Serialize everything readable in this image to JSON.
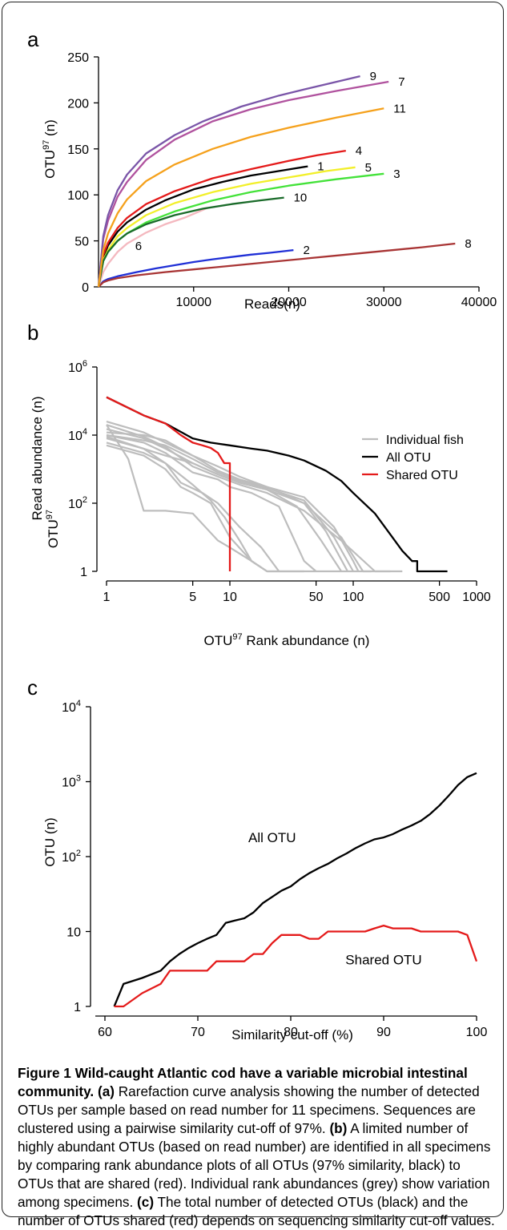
{
  "chart_data": [
    {
      "type": "line",
      "panel_label": "a",
      "xlabel": "Reads(n)",
      "ylabel_main": "OTU",
      "ylabel_sup": "97",
      "ylabel_tail": " (n)",
      "xlim": [
        0,
        40000
      ],
      "ylim": [
        0,
        250
      ],
      "xticks": [
        "10000",
        "20000",
        "30000",
        "40000"
      ],
      "yticks": [
        "0",
        "50",
        "100",
        "150",
        "200",
        "250"
      ],
      "series": [
        {
          "name": "1",
          "color": "#000000",
          "x": [
            0,
            500,
            1000,
            2000,
            3000,
            5000,
            7000,
            10000,
            13000,
            16000,
            19000,
            22000
          ],
          "y": [
            0,
            32,
            45,
            60,
            70,
            84,
            94,
            106,
            114,
            121,
            126,
            131
          ]
        },
        {
          "name": "2",
          "color": "#1f2fd6",
          "x": [
            0,
            500,
            1000,
            2000,
            4000,
            6000,
            8000,
            10000,
            12000,
            14000,
            16000,
            18000,
            20500
          ],
          "y": [
            0,
            6,
            8.5,
            11.5,
            16,
            20,
            23.5,
            27,
            30,
            32.5,
            35,
            37,
            40
          ]
        },
        {
          "name": "3",
          "color": "#44e23a",
          "x": [
            0,
            500,
            1000,
            2000,
            3000,
            5000,
            8000,
            12000,
            16000,
            20000,
            25000,
            30000
          ],
          "y": [
            0,
            28,
            38,
            50,
            58,
            70,
            82,
            94,
            103,
            110,
            117,
            123
          ]
        },
        {
          "name": "4",
          "color": "#e41a1a",
          "x": [
            0,
            500,
            1000,
            2000,
            3000,
            5000,
            8000,
            12000,
            16000,
            20000,
            23000,
            26000
          ],
          "y": [
            0,
            35,
            48,
            64,
            75,
            90,
            104,
            118,
            128,
            137,
            143,
            148
          ]
        },
        {
          "name": "5",
          "color": "#f2ef2a",
          "x": [
            0,
            500,
            1000,
            2000,
            3000,
            5000,
            8000,
            12000,
            16000,
            20000,
            24000,
            27000
          ],
          "y": [
            0,
            29,
            40,
            55,
            64,
            78,
            91,
            103,
            112,
            119,
            126,
            130
          ]
        },
        {
          "name": "6",
          "color": "#f4b8bf",
          "x": [
            0,
            500,
            1000,
            2000,
            3000,
            5000,
            7000,
            9000,
            11500
          ],
          "y": [
            0,
            16,
            25,
            38,
            47,
            59,
            68,
            75,
            86
          ]
        },
        {
          "name": "7",
          "color": "#b0529e",
          "x": [
            0,
            500,
            1000,
            2000,
            3000,
            5000,
            8000,
            12000,
            16000,
            20000,
            25000,
            30500
          ],
          "y": [
            0,
            52,
            72,
            98,
            114,
            138,
            160,
            180,
            193,
            203,
            213,
            223
          ]
        },
        {
          "name": "8",
          "color": "#a83434",
          "x": [
            0,
            500,
            1000,
            2000,
            4000,
            7000,
            10000,
            14000,
            18000,
            22000,
            26000,
            30000,
            34000,
            37500
          ],
          "y": [
            0,
            5,
            7,
            9.5,
            12.5,
            16,
            19,
            23,
            27,
            31,
            35,
            39,
            43,
            47
          ]
        },
        {
          "name": "9",
          "color": "#7a55a8",
          "x": [
            0,
            500,
            1000,
            2000,
            3000,
            5000,
            8000,
            11000,
            15000,
            19000,
            23000,
            27500
          ],
          "y": [
            0,
            55,
            78,
            105,
            122,
            145,
            165,
            180,
            196,
            208,
            218,
            229
          ]
        },
        {
          "name": "10",
          "color": "#1a6b2a",
          "x": [
            0,
            500,
            1000,
            2000,
            3000,
            5000,
            8000,
            11000,
            14000,
            17000,
            19500
          ],
          "y": [
            0,
            28,
            38,
            50,
            58,
            68,
            78,
            85,
            90,
            94,
            97
          ]
        },
        {
          "name": "11",
          "color": "#f5a11c",
          "x": [
            0,
            500,
            1000,
            2000,
            3000,
            5000,
            8000,
            12000,
            16000,
            20000,
            25000,
            30000
          ],
          "y": [
            0,
            40,
            58,
            80,
            95,
            115,
            133,
            150,
            163,
            173,
            184,
            194
          ]
        }
      ]
    },
    {
      "type": "line",
      "panel_label": "b",
      "scale": "log-log",
      "xlabel_main": "OTU",
      "xlabel_sup": "97",
      "xlabel_tail": "  Rank abundance (n)",
      "ylabel_main": "Read abundance (n)",
      "ylabel_pre": "OTU",
      "ylabel_sup": "97",
      "xlim": [
        1,
        1000
      ],
      "ylim": [
        1,
        1000000
      ],
      "xticks": [
        "1",
        "5",
        "10",
        "50",
        "100",
        "500",
        "1000"
      ],
      "yticks": [
        {
          "base": "1",
          "exp": ""
        },
        {
          "base": "10",
          "exp": "2"
        },
        {
          "base": "10",
          "exp": "4"
        },
        {
          "base": "10",
          "exp": "6"
        }
      ],
      "legend": {
        "position": "top-right",
        "items": [
          {
            "label": "Individual fish",
            "color": "#bdbdbd"
          },
          {
            "label": "All OTU",
            "color": "#000000"
          },
          {
            "label": "Shared OTU",
            "color": "#e41a1a"
          }
        ]
      },
      "series": [
        {
          "name": "All OTU",
          "color": "#000000",
          "x": [
            1,
            2,
            3,
            5,
            7,
            10,
            15,
            20,
            30,
            40,
            60,
            80,
            100,
            150,
            200,
            250,
            300,
            330,
            330,
            580
          ],
          "y": [
            130000,
            38000,
            22000,
            8000,
            6000,
            5000,
            4000,
            3500,
            2500,
            1800,
            900,
            450,
            200,
            50,
            12,
            4,
            2,
            2,
            1,
            1
          ]
        },
        {
          "name": "Shared OTU",
          "color": "#e41a1a",
          "x": [
            1,
            2,
            3,
            4,
            5,
            6,
            7,
            8,
            9,
            9,
            10,
            10
          ],
          "y": [
            130000,
            38000,
            22000,
            10000,
            6000,
            5000,
            4200,
            3000,
            1500,
            1500,
            1500,
            1
          ]
        }
      ],
      "individual_series": [
        {
          "x": [
            1,
            2,
            3,
            5,
            8,
            12,
            20,
            40,
            80,
            150,
            200
          ],
          "y": [
            20000,
            9000,
            4500,
            1200,
            600,
            350,
            200,
            60,
            8,
            1,
            1
          ]
        },
        {
          "x": [
            1,
            2,
            3,
            5,
            8,
            12,
            20,
            40,
            80,
            120,
            140
          ],
          "y": [
            15000,
            8000,
            4000,
            1500,
            700,
            400,
            250,
            100,
            10,
            1,
            1
          ]
        },
        {
          "x": [
            1,
            2,
            3,
            5,
            8,
            12,
            20,
            40,
            70,
            100,
            110
          ],
          "y": [
            12000,
            10000,
            7000,
            2500,
            900,
            500,
            300,
            150,
            20,
            2,
            1
          ]
        },
        {
          "x": [
            1,
            2,
            3,
            5,
            8,
            12,
            20,
            40,
            70,
            100
          ],
          "y": [
            10000,
            7000,
            5000,
            2000,
            800,
            450,
            280,
            120,
            10,
            1
          ]
        },
        {
          "x": [
            1,
            2,
            3,
            5,
            8,
            12,
            20,
            40,
            60,
            90
          ],
          "y": [
            25000,
            12000,
            6000,
            2500,
            1200,
            600,
            300,
            100,
            15,
            1
          ]
        },
        {
          "x": [
            1,
            2,
            3,
            5,
            8,
            12,
            20,
            35,
            55,
            80
          ],
          "y": [
            8000,
            4000,
            2500,
            1500,
            700,
            400,
            250,
            80,
            8,
            1
          ]
        },
        {
          "x": [
            1,
            2,
            3,
            5,
            8,
            10,
            15,
            25,
            40,
            50
          ],
          "y": [
            10000,
            6000,
            3000,
            800,
            500,
            300,
            200,
            80,
            2,
            1
          ]
        },
        {
          "x": [
            1,
            2,
            3,
            4,
            6,
            8,
            12,
            18,
            25
          ],
          "y": [
            6000,
            3000,
            1500,
            400,
            200,
            100,
            20,
            5,
            1
          ]
        },
        {
          "x": [
            1,
            2,
            3,
            4,
            5,
            7,
            10,
            15,
            20
          ],
          "y": [
            5000,
            2500,
            1000,
            300,
            200,
            100,
            10,
            2,
            1
          ]
        },
        {
          "x": [
            1,
            1.5,
            2,
            3,
            5,
            8,
            10,
            15,
            20,
            250
          ],
          "y": [
            20000,
            2000,
            60,
            60,
            50,
            8,
            5,
            2,
            1,
            1
          ]
        },
        {
          "x": [
            1,
            2,
            3,
            5,
            7,
            9,
            12,
            15,
            20,
            40
          ],
          "y": [
            9000,
            4000,
            1500,
            350,
            120,
            40,
            8,
            2,
            1,
            1
          ]
        }
      ]
    },
    {
      "type": "line",
      "panel_label": "c",
      "scale": "log-y",
      "xlabel": "Similarity cut-off (%)",
      "ylabel": "OTU (n)",
      "xlim": [
        60,
        100
      ],
      "ylim": [
        1,
        10000
      ],
      "xticks": [
        "60",
        "70",
        "80",
        "90",
        "100"
      ],
      "yticks": [
        {
          "base": "1",
          "exp": ""
        },
        {
          "base": "10",
          "exp": ""
        },
        {
          "base": "10",
          "exp": "2"
        },
        {
          "base": "10",
          "exp": "3"
        },
        {
          "base": "10",
          "exp": "4"
        }
      ],
      "annotations": [
        {
          "text": "All OTU",
          "x": 78,
          "y": 180
        },
        {
          "text": "Shared OTU",
          "x": 90,
          "y": 4.2
        }
      ],
      "series": [
        {
          "name": "All OTU",
          "color": "#000000",
          "x": [
            61,
            62,
            64,
            66,
            67,
            68,
            69,
            70,
            71,
            72,
            73,
            74,
            75,
            76,
            77,
            78,
            79,
            80,
            81,
            82,
            83,
            84,
            85,
            86,
            87,
            88,
            89,
            90,
            91,
            92,
            93,
            94,
            95,
            96,
            97,
            98,
            99,
            100
          ],
          "y": [
            1,
            2,
            2.4,
            3,
            4,
            5,
            6,
            7,
            8,
            9,
            13,
            14,
            15,
            18,
            24,
            29,
            35,
            40,
            50,
            60,
            70,
            80,
            95,
            110,
            130,
            150,
            170,
            180,
            200,
            230,
            260,
            300,
            370,
            480,
            650,
            900,
            1150,
            1300
          ]
        },
        {
          "name": "Shared OTU",
          "color": "#e41a1a",
          "x": [
            61,
            62,
            64,
            66,
            67,
            68,
            69,
            70,
            71,
            72,
            73,
            74,
            75,
            76,
            77,
            78,
            79,
            80,
            81,
            82,
            83,
            84,
            85,
            86,
            87,
            88,
            89,
            90,
            91,
            92,
            93,
            94,
            95,
            96,
            97,
            98,
            99,
            100
          ],
          "y": [
            1,
            1,
            1.5,
            2,
            3,
            3,
            3,
            3,
            3,
            4,
            4,
            4,
            4,
            5,
            5,
            7,
            9,
            9,
            9,
            8,
            8,
            10,
            10,
            10,
            10,
            10,
            11,
            12,
            11,
            11,
            11,
            10,
            10,
            10,
            10,
            10,
            9,
            4
          ]
        }
      ]
    }
  ],
  "caption": {
    "title": "Figure 1 Wild-caught Atlantic cod have a variable microbial intestinal community.",
    "parts": [
      {
        "ref": "(a)",
        "text": " Rarefaction curve analysis showing the number of detected OTUs per sample based on read number for 11 specimens. Sequences are clustered using a pairwise similarity cut-off of 97%. "
      },
      {
        "ref": "(b)",
        "text": " A limited number of highly abundant OTUs (based on read number) are identified in all specimens by comparing rank abundance plots of all OTUs (97% similarity, black) to OTUs that are shared (red). Individual rank abundances (grey) show variation among specimens. "
      },
      {
        "ref": "(c)",
        "text": " The total number of detected OTUs (black) and the number of OTUs shared (red) depends on sequencing similarity cut-off values."
      }
    ]
  }
}
